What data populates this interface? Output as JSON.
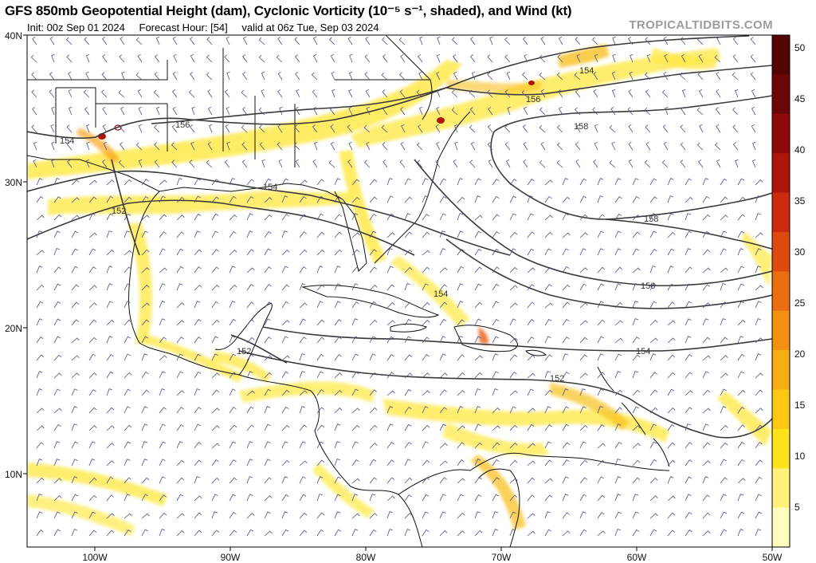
{
  "header": {
    "title": "GFS 850mb Geopotential Height (dam), Cyclonic Vorticity (10⁻⁵ s⁻¹, shaded), and Wind (kt)",
    "init": "Init: 00z Sep 01 2024",
    "forecast_hour": "Forecast Hour: [54]",
    "valid": "valid at 06z Tue, Sep 03 2024",
    "brand": "TROPICALTIDBITS.COM"
  },
  "axes": {
    "lon_labels": [
      "100W",
      "90W",
      "80W",
      "70W",
      "60W",
      "50W"
    ],
    "lat_labels": [
      "40N",
      "30N",
      "20N",
      "10N"
    ]
  },
  "colorbar": {
    "labels": [
      "50",
      "45",
      "40",
      "35",
      "30",
      "25",
      "20",
      "15",
      "10",
      "5"
    ],
    "colors": [
      "#fffcc0",
      "#fff27a",
      "#ffe21a",
      "#fcc812",
      "#f8ad12",
      "#f2910f",
      "#ea6d10",
      "#de4a0f",
      "#cc2a0e",
      "#b0150c",
      "#8e0a08",
      "#6c0505",
      "#550404"
    ]
  },
  "contours": [
    {
      "label": "154"
    },
    {
      "label": "156"
    },
    {
      "label": "154"
    },
    {
      "label": "152"
    },
    {
      "label": "154"
    },
    {
      "label": "156"
    },
    {
      "label": "158"
    },
    {
      "label": "158"
    },
    {
      "label": "156"
    },
    {
      "label": "154"
    },
    {
      "label": "154"
    },
    {
      "label": "152"
    },
    {
      "label": "152"
    }
  ]
}
